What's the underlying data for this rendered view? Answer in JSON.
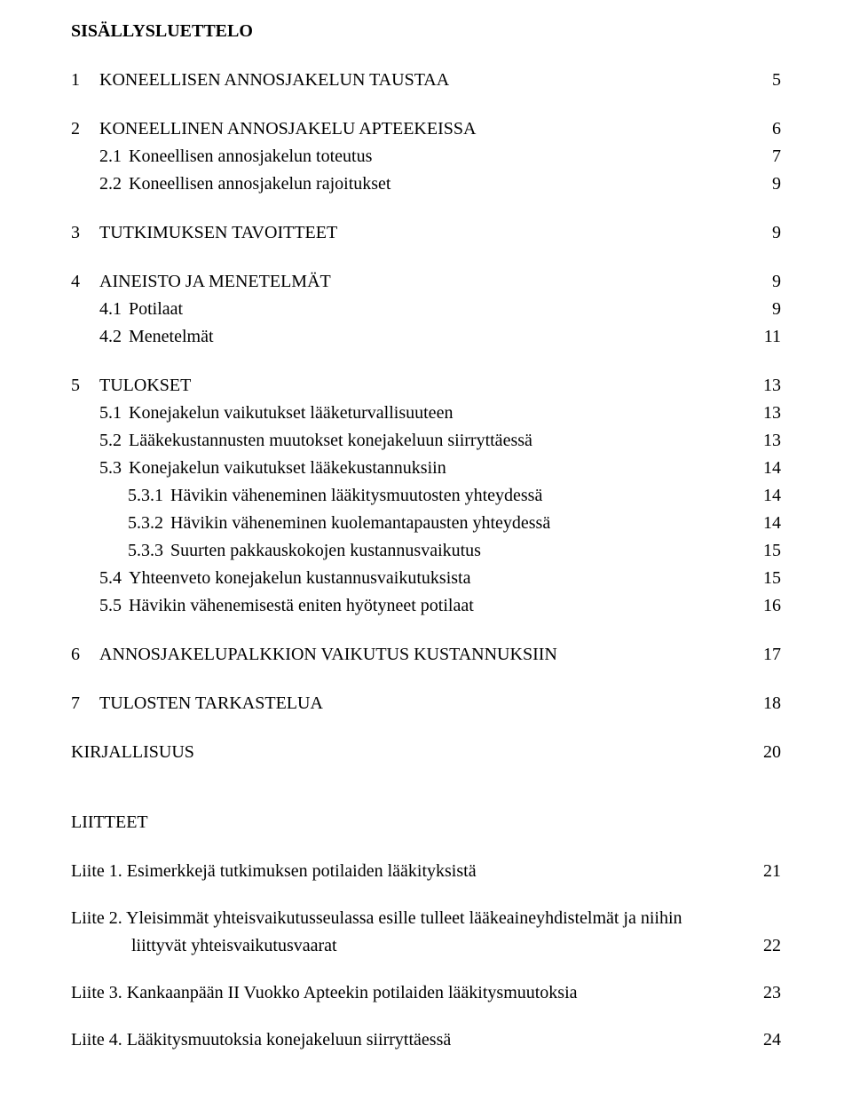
{
  "title": "SISÄLLYSLUETTELO",
  "toc": [
    {
      "level": 0,
      "num": "1",
      "label": "KONEELLISEN ANNOSJAKELUN TAUSTAA",
      "page": "5",
      "gapAfter": true
    },
    {
      "level": 0,
      "num": "2",
      "label": "KONEELLINEN ANNOSJAKELU APTEEKEISSA",
      "page": "6"
    },
    {
      "level": 1,
      "num": "2.1",
      "label": "Koneellisen annosjakelun toteutus",
      "page": "7"
    },
    {
      "level": 1,
      "num": "2.2",
      "label": "Koneellisen annosjakelun rajoitukset",
      "page": "9",
      "gapAfter": true
    },
    {
      "level": 0,
      "num": "3",
      "label": "TUTKIMUKSEN TAVOITTEET",
      "page": "9",
      "gapAfter": true
    },
    {
      "level": 0,
      "num": "4",
      "label": "AINEISTO JA MENETELMÄT",
      "page": "9"
    },
    {
      "level": 1,
      "num": "4.1",
      "label": "Potilaat",
      "page": "9"
    },
    {
      "level": 1,
      "num": "4.2",
      "label": "Menetelmät",
      "page": "11",
      "gapAfter": true
    },
    {
      "level": 0,
      "num": "5",
      "label": "TULOKSET",
      "page": "13"
    },
    {
      "level": 1,
      "num": "5.1",
      "label": "Konejakelun vaikutukset lääketurvallisuuteen",
      "page": "13"
    },
    {
      "level": 1,
      "num": "5.2",
      "label": "Lääkekustannusten muutokset konejakeluun siirryttäessä",
      "page": "13"
    },
    {
      "level": 1,
      "num": "5.3",
      "label": "Konejakelun vaikutukset lääkekustannuksiin",
      "page": "14"
    },
    {
      "level": 2,
      "num": "5.3.1",
      "label": "Hävikin väheneminen lääkitysmuutosten yhteydessä",
      "page": "14"
    },
    {
      "level": 2,
      "num": "5.3.2",
      "label": "Hävikin väheneminen kuolemantapausten yhteydessä",
      "page": "14"
    },
    {
      "level": 2,
      "num": "5.3.3",
      "label": "Suurten pakkauskokojen kustannusvaikutus",
      "page": "15"
    },
    {
      "level": 1,
      "num": "5.4",
      "label": "Yhteenveto konejakelun kustannusvaikutuksista",
      "page": "15"
    },
    {
      "level": 1,
      "num": "5.5",
      "label": "Hävikin vähenemisestä eniten hyötyneet potilaat",
      "page": "16",
      "gapAfter": true
    },
    {
      "level": 0,
      "num": "6",
      "label": "ANNOSJAKELUPALKKION VAIKUTUS KUSTANNUKSIIN",
      "page": "17",
      "gapAfter": true
    },
    {
      "level": 0,
      "num": "7",
      "label": "TULOSTEN TARKASTELUA",
      "page": "18",
      "gapAfter": true
    },
    {
      "level": 0,
      "num": "",
      "label": "KIRJALLISUUS",
      "page": "20",
      "flat": true,
      "gapAfter": true
    }
  ],
  "liitteetTitle": "LIITTEET",
  "liitteet": [
    {
      "prefix": "Liite 1.",
      "lines": [
        "Esimerkkejä tutkimuksen potilaiden lääkityksistä"
      ],
      "page": "21"
    },
    {
      "prefix": "Liite 2.",
      "lines": [
        "Yleisimmät yhteisvaikutusseulassa esille tulleet lääkeaineyhdistelmät ja niihin",
        "liittyvät yhteisvaikutusvaarat"
      ],
      "page": "22"
    },
    {
      "prefix": "Liite 3.",
      "lines": [
        "Kankaanpään II Vuokko Apteekin potilaiden lääkitysmuutoksia"
      ],
      "page": "23"
    },
    {
      "prefix": "Liite 4.",
      "lines": [
        "Lääkitysmuutoksia konejakeluun siirryttäessä"
      ],
      "page": "24"
    }
  ]
}
